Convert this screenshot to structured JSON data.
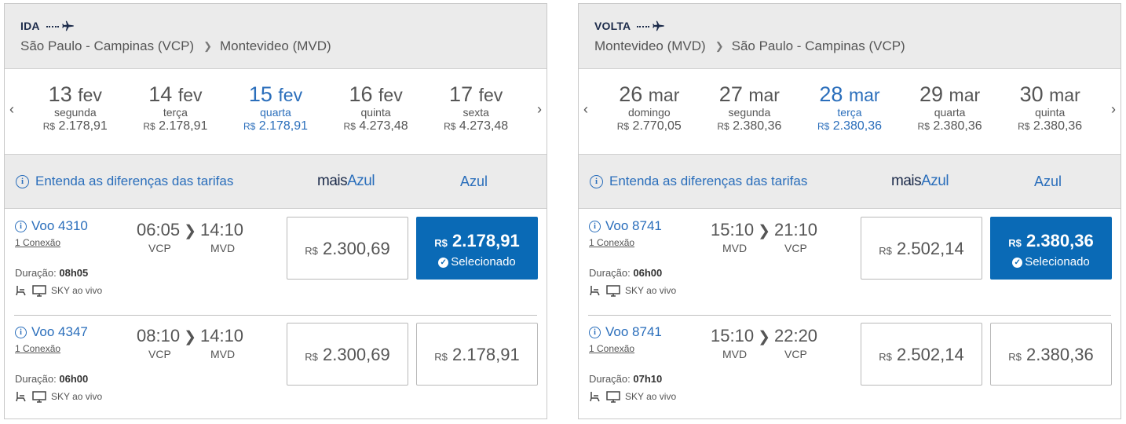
{
  "panels": [
    {
      "direction": "IDA",
      "origin": "São Paulo - Campinas (VCP)",
      "destination": "Montevideo (MVD)",
      "dates": [
        {
          "day": "13",
          "month": "fev",
          "weekday": "segunda",
          "currency": "R$",
          "price": "2.178,91",
          "selected": false
        },
        {
          "day": "14",
          "month": "fev",
          "weekday": "terça",
          "currency": "R$",
          "price": "2.178,91",
          "selected": false
        },
        {
          "day": "15",
          "month": "fev",
          "weekday": "quarta",
          "currency": "R$",
          "price": "2.178,91",
          "selected": true
        },
        {
          "day": "16",
          "month": "fev",
          "weekday": "quinta",
          "currency": "R$",
          "price": "4.273,48",
          "selected": false
        },
        {
          "day": "17",
          "month": "fev",
          "weekday": "sexta",
          "currency": "R$",
          "price": "4.273,48",
          "selected": false
        }
      ],
      "flights": [
        {
          "voo": "Voo 4310",
          "conexao": "1 Conexão",
          "dur_label": "Duração:",
          "duration": "08h05",
          "amenity": "SKY ao vivo",
          "dep": "06:05",
          "arr": "14:10",
          "from": "VCP",
          "to": "MVD",
          "fare_mais": "2.300,69",
          "fare_azul": "2.178,91",
          "azul_selected": true,
          "currency": "R$",
          "selected_label": "Selecionado"
        },
        {
          "voo": "Voo 4347",
          "conexao": "1 Conexão",
          "dur_label": "Duração:",
          "duration": "06h00",
          "amenity": "SKY ao vivo",
          "dep": "08:10",
          "arr": "14:10",
          "from": "VCP",
          "to": "MVD",
          "fare_mais": "2.300,69",
          "fare_azul": "2.178,91",
          "azul_selected": false,
          "currency": "R$",
          "selected_label": "Selecionado"
        }
      ]
    },
    {
      "direction": "VOLTA",
      "origin": "Montevideo (MVD)",
      "destination": "São Paulo - Campinas (VCP)",
      "dates": [
        {
          "day": "26",
          "month": "mar",
          "weekday": "domingo",
          "currency": "R$",
          "price": "2.770,05",
          "selected": false
        },
        {
          "day": "27",
          "month": "mar",
          "weekday": "segunda",
          "currency": "R$",
          "price": "2.380,36",
          "selected": false
        },
        {
          "day": "28",
          "month": "mar",
          "weekday": "terça",
          "currency": "R$",
          "price": "2.380,36",
          "selected": true
        },
        {
          "day": "29",
          "month": "mar",
          "weekday": "quarta",
          "currency": "R$",
          "price": "2.380,36",
          "selected": false
        },
        {
          "day": "30",
          "month": "mar",
          "weekday": "quinta",
          "currency": "R$",
          "price": "2.380,36",
          "selected": false
        }
      ],
      "flights": [
        {
          "voo": "Voo 8741",
          "conexao": "1 Conexão",
          "dur_label": "Duração:",
          "duration": "06h00",
          "amenity": "SKY ao vivo",
          "dep": "15:10",
          "arr": "21:10",
          "from": "MVD",
          "to": "VCP",
          "fare_mais": "2.502,14",
          "fare_azul": "2.380,36",
          "azul_selected": true,
          "currency": "R$",
          "selected_label": "Selecionado"
        },
        {
          "voo": "Voo 8741",
          "conexao": "1 Conexão",
          "dur_label": "Duração:",
          "duration": "07h10",
          "amenity": "SKY ao vivo",
          "dep": "15:10",
          "arr": "22:20",
          "from": "MVD",
          "to": "VCP",
          "fare_mais": "2.502,14",
          "fare_azul": "2.380,36",
          "azul_selected": false,
          "currency": "R$",
          "selected_label": "Selecionado"
        }
      ]
    }
  ],
  "fare_info_link": "Entenda as diferenças das tarifas",
  "brand_mais": "mais",
  "brand_azul_part": "Azul",
  "col_azul": "Azul",
  "icons": {
    "plane": "airplane-icon",
    "chevron": "chevron-right-icon",
    "prev": "chevron-left-icon",
    "next": "chevron-right-icon",
    "info": "info-icon",
    "seat": "seat-icon",
    "tv": "tv-icon",
    "check": "check-circle-icon"
  },
  "colors": {
    "accent": "#2a6ebb",
    "selected_bg": "#0a6ab6",
    "header_bg": "#ebebeb",
    "dark_text": "#1c2b4a"
  }
}
